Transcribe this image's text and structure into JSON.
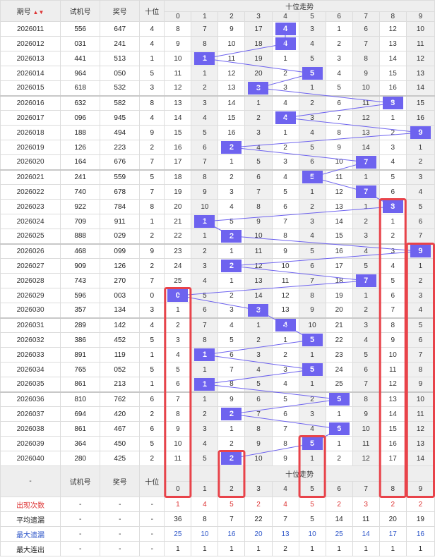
{
  "header": {
    "period": "期号",
    "sort_mark": "▲▼",
    "test": "试机号",
    "prize": "奖号",
    "tens": "十位",
    "trend": "十位走势",
    "digits": [
      "0",
      "1",
      "2",
      "3",
      "4",
      "5",
      "6",
      "7",
      "8",
      "9"
    ]
  },
  "rows": [
    {
      "period": "2026011",
      "test": "556",
      "prize": "647",
      "tens": "4",
      "cells": [
        "8",
        "7",
        "9",
        "17",
        "4",
        "3",
        "1",
        "6",
        "12",
        "10"
      ]
    },
    {
      "period": "2026012",
      "test": "031",
      "prize": "241",
      "tens": "4",
      "cells": [
        "9",
        "8",
        "10",
        "18",
        "4",
        "4",
        "2",
        "7",
        "13",
        "11"
      ]
    },
    {
      "period": "2026013",
      "test": "441",
      "prize": "513",
      "tens": "1",
      "cells": [
        "10",
        "1",
        "11",
        "19",
        "1",
        "5",
        "3",
        "8",
        "14",
        "12"
      ]
    },
    {
      "period": "2026014",
      "test": "964",
      "prize": "050",
      "tens": "5",
      "cells": [
        "11",
        "1",
        "12",
        "20",
        "2",
        "5",
        "4",
        "9",
        "15",
        "13"
      ]
    },
    {
      "period": "2026015",
      "test": "618",
      "prize": "532",
      "tens": "3",
      "cells": [
        "12",
        "2",
        "13",
        "3",
        "3",
        "1",
        "5",
        "10",
        "16",
        "14"
      ]
    },
    {
      "period": "2026016",
      "test": "632",
      "prize": "582",
      "tens": "8",
      "cells": [
        "13",
        "3",
        "14",
        "1",
        "4",
        "2",
        "6",
        "11",
        "8",
        "15"
      ]
    },
    {
      "period": "2026017",
      "test": "096",
      "prize": "945",
      "tens": "4",
      "cells": [
        "14",
        "4",
        "15",
        "2",
        "4",
        "3",
        "7",
        "12",
        "1",
        "16"
      ]
    },
    {
      "period": "2026018",
      "test": "188",
      "prize": "494",
      "tens": "9",
      "cells": [
        "15",
        "5",
        "16",
        "3",
        "1",
        "4",
        "8",
        "13",
        "2",
        "9"
      ]
    },
    {
      "period": "2026019",
      "test": "126",
      "prize": "223",
      "tens": "2",
      "cells": [
        "16",
        "6",
        "2",
        "4",
        "2",
        "5",
        "9",
        "14",
        "3",
        "1"
      ]
    },
    {
      "period": "2026020",
      "test": "164",
      "prize": "676",
      "tens": "7",
      "cells": [
        "17",
        "7",
        "1",
        "5",
        "3",
        "6",
        "10",
        "7",
        "4",
        "2"
      ]
    },
    {
      "period": "2026021",
      "test": "241",
      "prize": "559",
      "tens": "5",
      "cells": [
        "18",
        "8",
        "2",
        "6",
        "4",
        "5",
        "11",
        "1",
        "5",
        "3"
      ]
    },
    {
      "period": "2026022",
      "test": "740",
      "prize": "678",
      "tens": "7",
      "cells": [
        "19",
        "9",
        "3",
        "7",
        "5",
        "1",
        "12",
        "7",
        "6",
        "4"
      ]
    },
    {
      "period": "2026023",
      "test": "922",
      "prize": "784",
      "tens": "8",
      "cells": [
        "20",
        "10",
        "4",
        "8",
        "6",
        "2",
        "13",
        "1",
        "8",
        "5"
      ]
    },
    {
      "period": "2026024",
      "test": "709",
      "prize": "911",
      "tens": "1",
      "cells": [
        "21",
        "1",
        "5",
        "9",
        "7",
        "3",
        "14",
        "2",
        "1",
        "6"
      ]
    },
    {
      "period": "2026025",
      "test": "888",
      "prize": "029",
      "tens": "2",
      "cells": [
        "22",
        "1",
        "2",
        "10",
        "8",
        "4",
        "15",
        "3",
        "2",
        "7"
      ]
    },
    {
      "period": "2026026",
      "test": "468",
      "prize": "099",
      "tens": "9",
      "cells": [
        "23",
        "2",
        "1",
        "11",
        "9",
        "5",
        "16",
        "4",
        "3",
        "9"
      ]
    },
    {
      "period": "2026027",
      "test": "909",
      "prize": "126",
      "tens": "2",
      "cells": [
        "24",
        "3",
        "2",
        "12",
        "10",
        "6",
        "17",
        "5",
        "4",
        "1"
      ]
    },
    {
      "period": "2026028",
      "test": "743",
      "prize": "270",
      "tens": "7",
      "cells": [
        "25",
        "4",
        "1",
        "13",
        "11",
        "7",
        "18",
        "7",
        "5",
        "2"
      ]
    },
    {
      "period": "2026029",
      "test": "596",
      "prize": "003",
      "tens": "0",
      "cells": [
        "0",
        "5",
        "2",
        "14",
        "12",
        "8",
        "19",
        "1",
        "6",
        "3"
      ]
    },
    {
      "period": "2026030",
      "test": "357",
      "prize": "134",
      "tens": "3",
      "cells": [
        "1",
        "6",
        "3",
        "3",
        "13",
        "9",
        "20",
        "2",
        "7",
        "4"
      ]
    },
    {
      "period": "2026031",
      "test": "289",
      "prize": "142",
      "tens": "4",
      "cells": [
        "2",
        "7",
        "4",
        "1",
        "4",
        "10",
        "21",
        "3",
        "8",
        "5"
      ]
    },
    {
      "period": "2026032",
      "test": "386",
      "prize": "452",
      "tens": "5",
      "cells": [
        "3",
        "8",
        "5",
        "2",
        "1",
        "5",
        "22",
        "4",
        "9",
        "6"
      ]
    },
    {
      "period": "2026033",
      "test": "891",
      "prize": "119",
      "tens": "1",
      "cells": [
        "4",
        "1",
        "6",
        "3",
        "2",
        "1",
        "23",
        "5",
        "10",
        "7"
      ]
    },
    {
      "period": "2026034",
      "test": "765",
      "prize": "052",
      "tens": "5",
      "cells": [
        "5",
        "1",
        "7",
        "4",
        "3",
        "5",
        "24",
        "6",
        "11",
        "8"
      ]
    },
    {
      "period": "2026035",
      "test": "861",
      "prize": "213",
      "tens": "1",
      "cells": [
        "6",
        "1",
        "8",
        "5",
        "4",
        "1",
        "25",
        "7",
        "12",
        "9"
      ]
    },
    {
      "period": "2026036",
      "test": "810",
      "prize": "762",
      "tens": "6",
      "cells": [
        "7",
        "1",
        "9",
        "6",
        "5",
        "2",
        "6",
        "8",
        "13",
        "10"
      ]
    },
    {
      "period": "2026037",
      "test": "694",
      "prize": "420",
      "tens": "2",
      "cells": [
        "8",
        "2",
        "2",
        "7",
        "6",
        "3",
        "1",
        "9",
        "14",
        "11"
      ]
    },
    {
      "period": "2026038",
      "test": "861",
      "prize": "467",
      "tens": "6",
      "cells": [
        "9",
        "3",
        "1",
        "8",
        "7",
        "4",
        "6",
        "10",
        "15",
        "12"
      ]
    },
    {
      "period": "2026039",
      "test": "364",
      "prize": "450",
      "tens": "5",
      "cells": [
        "10",
        "4",
        "2",
        "9",
        "8",
        "5",
        "1",
        "11",
        "16",
        "13"
      ]
    },
    {
      "period": "2026040",
      "test": "280",
      "prize": "425",
      "tens": "2",
      "cells": [
        "11",
        "5",
        "2",
        "10",
        "9",
        "1",
        "2",
        "12",
        "17",
        "14"
      ]
    }
  ],
  "footer_header": {
    "period": "-",
    "test": "试机号",
    "prize": "奖号",
    "tens": "十位",
    "trend": "十位走势"
  },
  "stats": [
    {
      "label": "出现次数",
      "style": "red",
      "cells": [
        "1",
        "4",
        "5",
        "2",
        "4",
        "5",
        "2",
        "3",
        "2",
        "2"
      ]
    },
    {
      "label": "平均遗漏",
      "style": "normal",
      "cells": [
        "36",
        "8",
        "7",
        "22",
        "7",
        "5",
        "14",
        "11",
        "20",
        "19"
      ]
    },
    {
      "label": "最大遗漏",
      "style": "blue",
      "cells": [
        "25",
        "10",
        "16",
        "20",
        "13",
        "10",
        "25",
        "14",
        "17",
        "16"
      ]
    },
    {
      "label": "最大连出",
      "style": "normal",
      "cells": [
        "1",
        "1",
        "1",
        "1",
        "2",
        "1",
        "1",
        "1",
        "1",
        "1"
      ]
    }
  ],
  "stat_dash": "-",
  "colors": {
    "hit": "#6e63ef",
    "line": "#6e63ef",
    "highlight_box": "#e8434a"
  }
}
